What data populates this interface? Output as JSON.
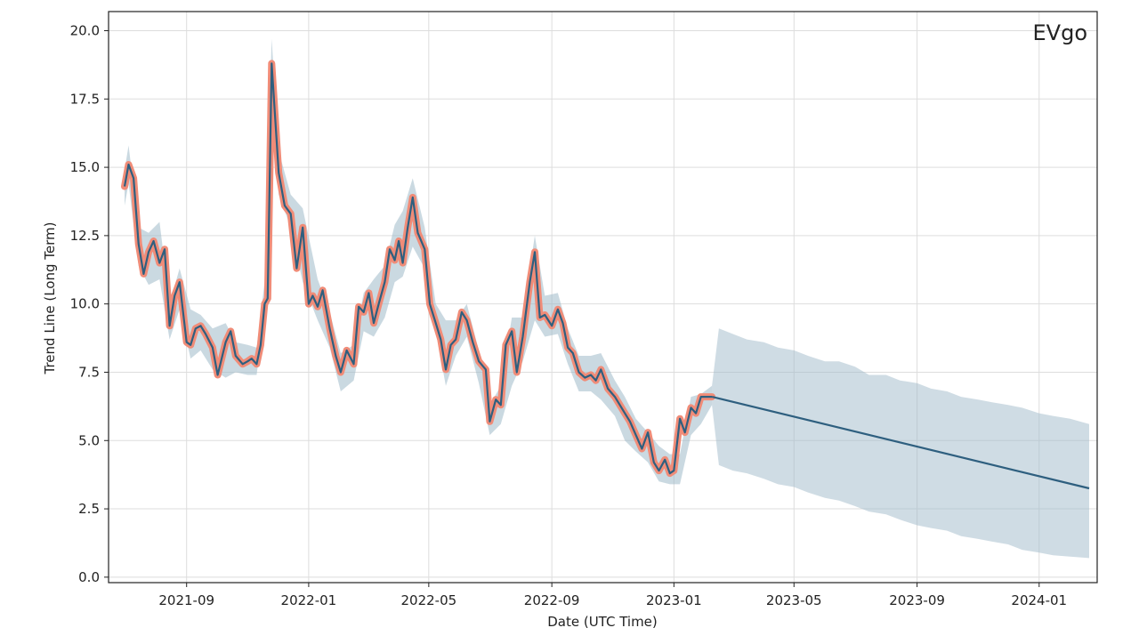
{
  "chart_data": {
    "type": "line",
    "title": "",
    "corner_label": "EVgo",
    "xlabel": "Date (UTC Time)",
    "ylabel": "Trend Line (Long Term)",
    "x_axis_type": "date",
    "xlim": [
      "2021-06-15",
      "2024-02-28"
    ],
    "ylim": [
      -0.2,
      20.7
    ],
    "grid": true,
    "x_ticks": [
      "2021-09-01",
      "2022-01-01",
      "2022-05-01",
      "2022-09-01",
      "2023-01-01",
      "2023-05-01",
      "2023-09-01",
      "2024-01-01"
    ],
    "x_tick_labels": [
      "2021-09",
      "2022-01",
      "2022-05",
      "2022-09",
      "2023-01",
      "2023-05",
      "2023-09",
      "2024-01"
    ],
    "y_ticks": [
      0.0,
      2.5,
      5.0,
      7.5,
      10.0,
      12.5,
      15.0,
      17.5,
      20.0
    ],
    "y_tick_labels": [
      "0.0",
      "2.5",
      "5.0",
      "7.5",
      "10.0",
      "12.5",
      "15.0",
      "17.5",
      "20.0"
    ],
    "colors": {
      "history_highlight": "#f08c78",
      "trend_line": "#2e5f7f",
      "band_fill": "#9fb9c9",
      "grid": "#dddddd",
      "axes": "#222222"
    },
    "series": [
      {
        "role": "historical",
        "x": [
          "2021-07-01",
          "2021-07-05",
          "2021-07-10",
          "2021-07-15",
          "2021-07-20",
          "2021-07-25",
          "2021-07-30",
          "2021-08-05",
          "2021-08-10",
          "2021-08-15",
          "2021-08-20",
          "2021-08-25",
          "2021-09-01",
          "2021-09-05",
          "2021-09-10",
          "2021-09-15",
          "2021-09-20",
          "2021-09-27",
          "2021-10-02",
          "2021-10-10",
          "2021-10-15",
          "2021-10-20",
          "2021-10-27",
          "2021-11-01",
          "2021-11-05",
          "2021-11-10",
          "2021-11-14",
          "2021-11-18",
          "2021-11-21",
          "2021-11-25",
          "2021-12-02",
          "2021-12-08",
          "2021-12-14",
          "2021-12-20",
          "2021-12-26",
          "2022-01-01",
          "2022-01-05",
          "2022-01-10",
          "2022-01-15",
          "2022-01-22",
          "2022-01-28",
          "2022-02-02",
          "2022-02-08",
          "2022-02-15",
          "2022-02-20",
          "2022-02-25",
          "2022-03-02",
          "2022-03-07",
          "2022-03-12",
          "2022-03-18",
          "2022-03-23",
          "2022-03-28",
          "2022-04-01",
          "2022-04-05",
          "2022-04-10",
          "2022-04-15",
          "2022-04-20",
          "2022-04-27",
          "2022-05-02",
          "2022-05-08",
          "2022-05-13",
          "2022-05-18",
          "2022-05-23",
          "2022-05-28",
          "2022-06-03",
          "2022-06-08",
          "2022-06-14",
          "2022-06-20",
          "2022-06-27",
          "2022-07-01",
          "2022-07-07",
          "2022-07-12",
          "2022-07-17",
          "2022-07-23",
          "2022-07-28",
          "2022-08-03",
          "2022-08-10",
          "2022-08-15",
          "2022-08-20",
          "2022-08-25",
          "2022-09-01",
          "2022-09-07",
          "2022-09-12",
          "2022-09-17",
          "2022-09-22",
          "2022-09-28",
          "2022-10-04",
          "2022-10-10",
          "2022-10-15",
          "2022-10-20",
          "2022-10-27",
          "2022-11-03",
          "2022-11-08",
          "2022-11-13",
          "2022-11-18",
          "2022-11-24",
          "2022-11-30",
          "2022-12-06",
          "2022-12-12",
          "2022-12-17",
          "2022-12-23",
          "2022-12-28",
          "2023-01-01",
          "2023-01-07",
          "2023-01-12",
          "2023-01-18",
          "2023-01-23",
          "2023-01-28",
          "2023-02-03",
          "2023-02-08"
        ],
        "y": [
          14.3,
          15.1,
          14.6,
          12.2,
          11.1,
          11.9,
          12.3,
          11.5,
          12.0,
          9.2,
          10.3,
          10.8,
          8.6,
          8.5,
          9.1,
          9.2,
          8.9,
          8.4,
          7.4,
          8.6,
          9.0,
          8.1,
          7.8,
          7.9,
          8.0,
          7.8,
          8.5,
          10.0,
          10.2,
          18.8,
          14.8,
          13.6,
          13.3,
          11.3,
          12.8,
          10.0,
          10.3,
          9.9,
          10.5,
          9.1,
          8.1,
          7.5,
          8.3,
          7.8,
          9.9,
          9.7,
          10.4,
          9.3,
          10.0,
          10.8,
          12.0,
          11.6,
          12.3,
          11.5,
          12.8,
          13.9,
          12.6,
          12.0,
          10.0,
          9.3,
          8.7,
          7.6,
          8.5,
          8.7,
          9.7,
          9.4,
          8.6,
          7.9,
          7.6,
          5.7,
          6.5,
          6.3,
          8.5,
          9.0,
          7.5,
          8.8,
          10.8,
          11.9,
          9.5,
          9.6,
          9.2,
          9.8,
          9.3,
          8.4,
          8.2,
          7.5,
          7.3,
          7.4,
          7.2,
          7.6,
          6.9,
          6.6,
          6.3,
          6.0,
          5.7,
          5.2,
          4.7,
          5.3,
          4.2,
          3.9,
          4.3,
          3.8,
          3.9,
          5.8,
          5.3,
          6.2,
          6.0,
          6.6,
          6.6,
          6.6
        ]
      },
      {
        "role": "forecast_trend",
        "x": [
          "2023-02-08",
          "2024-02-20"
        ],
        "y": [
          6.6,
          3.25
        ]
      }
    ],
    "band": {
      "role": "historical_band",
      "x": [
        "2021-07-01",
        "2021-07-05",
        "2021-07-15",
        "2021-07-25",
        "2021-08-05",
        "2021-08-15",
        "2021-08-25",
        "2021-09-05",
        "2021-09-15",
        "2021-09-27",
        "2021-10-10",
        "2021-10-20",
        "2021-11-01",
        "2021-11-10",
        "2021-11-18",
        "2021-11-25",
        "2021-12-02",
        "2021-12-14",
        "2021-12-26",
        "2022-01-10",
        "2022-01-22",
        "2022-02-02",
        "2022-02-15",
        "2022-02-25",
        "2022-03-07",
        "2022-03-18",
        "2022-03-28",
        "2022-04-05",
        "2022-04-15",
        "2022-04-27",
        "2022-05-08",
        "2022-05-18",
        "2022-05-28",
        "2022-06-08",
        "2022-06-20",
        "2022-07-01",
        "2022-07-12",
        "2022-07-23",
        "2022-08-03",
        "2022-08-15",
        "2022-08-25",
        "2022-09-07",
        "2022-09-17",
        "2022-09-28",
        "2022-10-10",
        "2022-10-20",
        "2022-11-03",
        "2022-11-13",
        "2022-11-24",
        "2022-12-06",
        "2022-12-17",
        "2022-12-28",
        "2023-01-07",
        "2023-01-18",
        "2023-01-28",
        "2023-02-08"
      ],
      "upper": [
        14.9,
        15.8,
        12.8,
        12.6,
        13.0,
        10.0,
        11.3,
        9.8,
        9.6,
        9.1,
        9.3,
        8.6,
        8.5,
        8.4,
        10.8,
        19.7,
        15.6,
        14.0,
        13.5,
        10.9,
        9.7,
        8.2,
        8.5,
        10.4,
        10.9,
        11.4,
        12.9,
        13.4,
        14.6,
        12.8,
        10.0,
        9.4,
        9.4,
        10.0,
        8.3,
        6.3,
        7.0,
        9.5,
        9.5,
        12.5,
        10.3,
        10.4,
        9.1,
        8.1,
        8.1,
        8.2,
        7.2,
        6.6,
        5.8,
        5.3,
        4.8,
        4.5,
        4.5,
        6.6,
        6.7,
        7.0
      ],
      "lower": [
        13.6,
        14.4,
        11.4,
        10.7,
        10.9,
        8.7,
        9.8,
        8.0,
        8.3,
        7.6,
        7.3,
        7.5,
        7.4,
        7.4,
        9.6,
        17.5,
        14.0,
        12.8,
        10.8,
        9.4,
        8.4,
        6.8,
        7.2,
        9.0,
        8.8,
        9.5,
        10.8,
        11.0,
        12.1,
        11.3,
        9.0,
        7.0,
        8.1,
        8.8,
        7.1,
        5.2,
        5.6,
        7.0,
        7.9,
        9.4,
        8.8,
        8.9,
        7.8,
        6.8,
        6.8,
        6.5,
        5.9,
        5.0,
        4.6,
        4.2,
        3.5,
        3.4,
        3.4,
        5.2,
        5.6,
        6.3
      ]
    },
    "forecast_band": {
      "role": "forecast_interval",
      "x": [
        "2023-02-08",
        "2023-02-15",
        "2023-03-01",
        "2023-03-15",
        "2023-04-01",
        "2023-04-15",
        "2023-05-01",
        "2023-05-15",
        "2023-06-01",
        "2023-06-15",
        "2023-07-01",
        "2023-07-15",
        "2023-08-01",
        "2023-08-15",
        "2023-09-01",
        "2023-09-15",
        "2023-10-01",
        "2023-10-15",
        "2023-11-01",
        "2023-11-15",
        "2023-12-01",
        "2023-12-15",
        "2024-01-01",
        "2024-01-15",
        "2024-02-01",
        "2024-02-20"
      ],
      "upper": [
        7.0,
        9.1,
        8.9,
        8.7,
        8.6,
        8.4,
        8.3,
        8.1,
        7.9,
        7.9,
        7.7,
        7.4,
        7.4,
        7.2,
        7.1,
        6.9,
        6.8,
        6.6,
        6.5,
        6.4,
        6.3,
        6.2,
        6.0,
        5.9,
        5.8,
        5.6
      ],
      "lower": [
        6.3,
        4.1,
        3.9,
        3.8,
        3.6,
        3.4,
        3.3,
        3.1,
        2.9,
        2.8,
        2.6,
        2.4,
        2.3,
        2.1,
        1.9,
        1.8,
        1.7,
        1.5,
        1.4,
        1.3,
        1.2,
        1.0,
        0.9,
        0.8,
        0.75,
        0.7
      ]
    }
  }
}
